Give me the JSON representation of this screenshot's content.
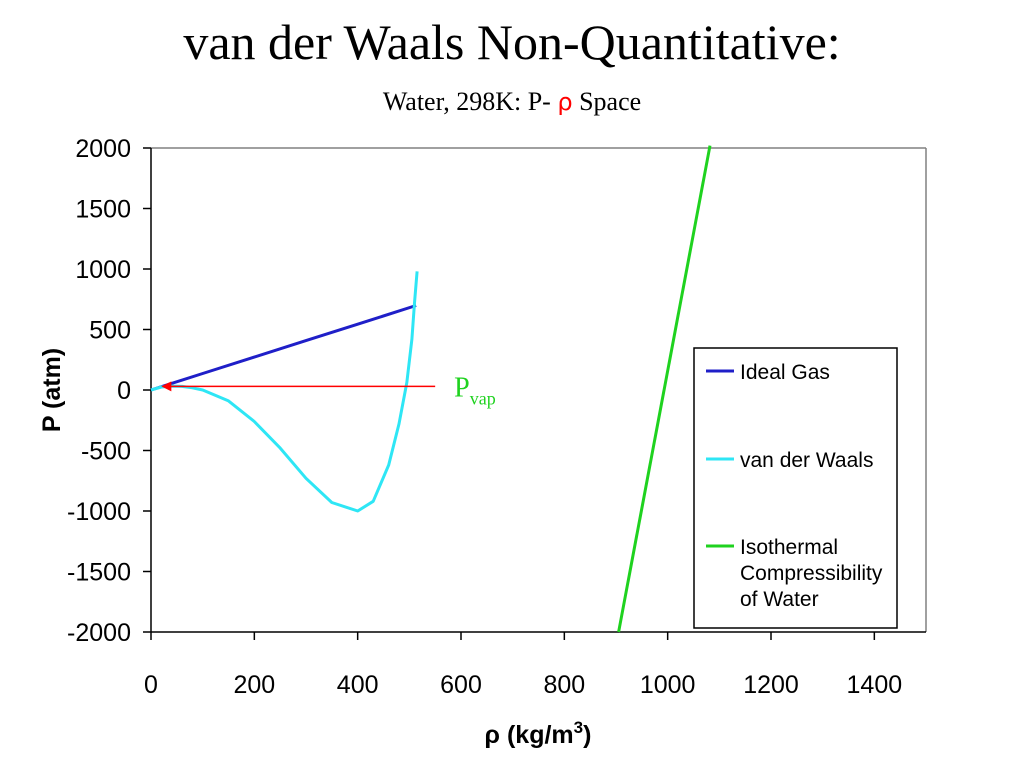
{
  "chart_data": {
    "type": "line",
    "title": "van der Waals Non-Quantitative:",
    "subtitle": {
      "prefix": "Water, 298K: P- ",
      "symbol": "ρ",
      "suffix": " Space"
    },
    "xlabel": {
      "main": "ρ (kg/m",
      "sup": "3",
      "close": ")"
    },
    "ylabel": "P (atm)",
    "xlim": [
      0,
      1500
    ],
    "ylim": [
      -2000,
      2000
    ],
    "x_ticks": [
      0,
      200,
      400,
      600,
      800,
      1000,
      1200,
      1400
    ],
    "y_ticks": [
      2000,
      1500,
      1000,
      500,
      0,
      -500,
      -1000,
      -1500,
      -2000
    ],
    "grid": false,
    "legend_position": "right",
    "series": [
      {
        "name": "Ideal Gas",
        "color": "#1f1fc8",
        "x": [
          0,
          100,
          200,
          300,
          400,
          513
        ],
        "y": [
          0,
          136,
          272,
          408,
          544,
          698
        ]
      },
      {
        "name": "van der Waals",
        "color": "#2ee6f5",
        "x": [
          0,
          20,
          40,
          60,
          80,
          100,
          150,
          200,
          250,
          300,
          350,
          400,
          430,
          460,
          480,
          495,
          505,
          510,
          515
        ],
        "y": [
          0,
          25,
          32,
          30,
          18,
          0,
          -90,
          -260,
          -480,
          -730,
          -930,
          -1000,
          -920,
          -620,
          -280,
          60,
          420,
          720,
          980
        ]
      },
      {
        "name": "Isothermal Compressibility of Water",
        "color": "#1fd21f",
        "x": [
          905,
          1082
        ],
        "y": [
          -2000,
          2020
        ]
      }
    ],
    "annotations": [
      {
        "label": "P",
        "sub": "vap",
        "color": "#1fd21f",
        "arrow_color": "#ff0000",
        "arrow_from": [
          550,
          30
        ],
        "arrow_to": [
          20,
          30
        ]
      }
    ]
  }
}
